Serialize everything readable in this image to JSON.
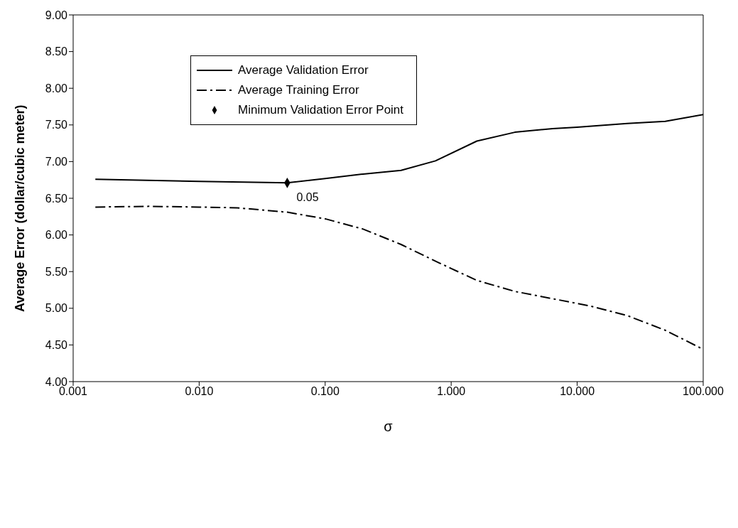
{
  "chart_data": {
    "type": "line",
    "xlabel": "σ",
    "ylabel": "Average Error (dollar/cubic meter)",
    "log": "x",
    "xlim": [
      0.001,
      100
    ],
    "xticks": [
      {
        "value": 0.001,
        "label": "0.001"
      },
      {
        "value": 0.01,
        "label": "0.010"
      },
      {
        "value": 0.1,
        "label": "0.100"
      },
      {
        "value": 1,
        "label": "1.000"
      },
      {
        "value": 10,
        "label": "10.000"
      },
      {
        "value": 100,
        "label": "100.000"
      }
    ],
    "ylim": [
      4,
      9
    ],
    "yticks": [
      {
        "value": 4,
        "label": "4.00"
      },
      {
        "value": 4.5,
        "label": "4.50"
      },
      {
        "value": 5,
        "label": "5.00"
      },
      {
        "value": 5.5,
        "label": "5.50"
      },
      {
        "value": 6,
        "label": "6.00"
      },
      {
        "value": 6.5,
        "label": "6.50"
      },
      {
        "value": 7,
        "label": "7.00"
      },
      {
        "value": 7.5,
        "label": "7.50"
      },
      {
        "value": 8,
        "label": "8.00"
      },
      {
        "value": 8.5,
        "label": "8.50"
      },
      {
        "value": 9,
        "label": "9.00"
      }
    ],
    "grid": false,
    "legend": "top left",
    "marker": "none",
    "series": [
      {
        "name": "Average Validation Error",
        "color": "#000000",
        "line_style": "solid",
        "x": [
          0.0015,
          0.01,
          0.05,
          0.1,
          0.2,
          0.4,
          0.75,
          1.6,
          3.2,
          6.4,
          10,
          25,
          50,
          100
        ],
        "values": [
          6.76,
          6.73,
          6.71,
          6.77,
          6.83,
          6.88,
          7.01,
          7.28,
          7.4,
          7.45,
          7.47,
          7.52,
          7.55,
          7.64
        ]
      },
      {
        "name": "Average Training Error",
        "color": "#000000",
        "line_style": "dashed",
        "x": [
          0.0015,
          0.004,
          0.01,
          0.02,
          0.05,
          0.1,
          0.2,
          0.4,
          0.8,
          1.6,
          3.2,
          6.4,
          12.8,
          25,
          50,
          100
        ],
        "values": [
          6.38,
          6.39,
          6.38,
          6.37,
          6.31,
          6.22,
          6.08,
          5.87,
          5.62,
          5.38,
          5.23,
          5.13,
          5.03,
          4.9,
          4.7,
          4.44
        ]
      },
      {
        "name": "Minimum Validation Error Point",
        "type": "scatter",
        "marker": "diamond",
        "color": "#000000",
        "x": [
          0.05
        ],
        "values": [
          6.71
        ]
      }
    ],
    "annotations": [
      {
        "text": "0.05",
        "x": 0.05,
        "y": 6.71
      }
    ]
  }
}
